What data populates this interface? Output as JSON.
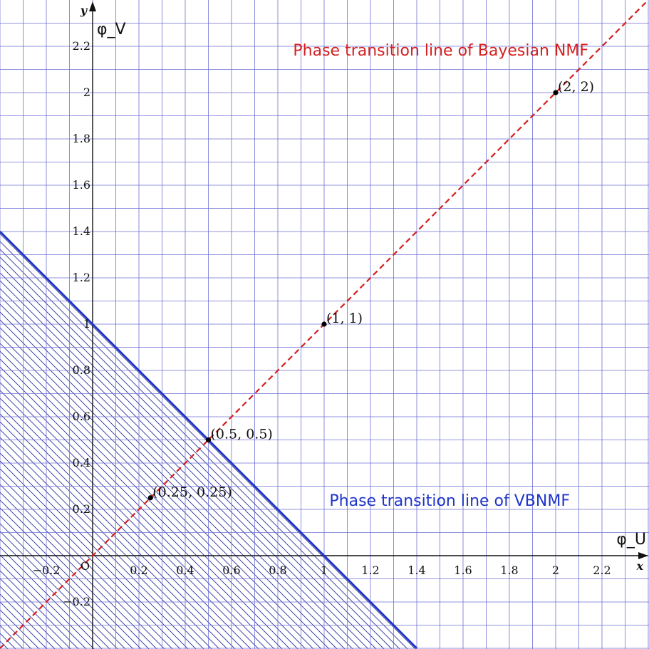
{
  "chart_data": {
    "type": "line",
    "xlabel": "φ_U",
    "ylabel": "φ_V",
    "x_axis_letter": "x",
    "y_axis_letter": "y",
    "xlim": [
      -0.4,
      2.4
    ],
    "ylim": [
      -0.4,
      2.4
    ],
    "x_ticks": [
      {
        "value": -0.2,
        "label": "−0.2"
      },
      {
        "value": 0.2,
        "label": "0.2"
      },
      {
        "value": 0.4,
        "label": "0.4"
      },
      {
        "value": 0.6,
        "label": "0.6"
      },
      {
        "value": 0.8,
        "label": "0.8"
      },
      {
        "value": 1,
        "label": "1"
      },
      {
        "value": 1.2,
        "label": "1.2"
      },
      {
        "value": 1.4,
        "label": "1.4"
      },
      {
        "value": 1.6,
        "label": "1.6"
      },
      {
        "value": 1.8,
        "label": "1.8"
      },
      {
        "value": 2,
        "label": "2"
      },
      {
        "value": 2.2,
        "label": "2.2"
      }
    ],
    "y_ticks": [
      {
        "value": -0.2,
        "label": "−0.2"
      },
      {
        "value": 0.2,
        "label": "0.2"
      },
      {
        "value": 0.4,
        "label": "0.4"
      },
      {
        "value": 0.6,
        "label": "0.6"
      },
      {
        "value": 0.8,
        "label": "0.8"
      },
      {
        "value": 1,
        "label": "1"
      },
      {
        "value": 1.2,
        "label": "1.2"
      },
      {
        "value": 1.4,
        "label": "1.4"
      },
      {
        "value": 1.6,
        "label": "1.6"
      },
      {
        "value": 1.8,
        "label": "1.8"
      },
      {
        "value": 2,
        "label": "2"
      },
      {
        "value": 2.2,
        "label": "2.2"
      }
    ],
    "origin_label": "O",
    "grid": true,
    "grid_minor_step": 0.1,
    "series": [
      {
        "name": "Phase transition line of Bayesian NMF",
        "equation": "y = x",
        "style": "dashed",
        "color": "#d42020",
        "x": [
          -0.4,
          2.4
        ],
        "y": [
          -0.4,
          2.4
        ]
      },
      {
        "name": "Phase transition line of VBNMF",
        "equation": "y = 1 - x",
        "style": "solid",
        "color": "#1f35c9",
        "x": [
          -0.4,
          1.4
        ],
        "y": [
          1.4,
          -0.4
        ],
        "hatched_region": "below"
      }
    ],
    "points": [
      {
        "x": 0.25,
        "y": 0.25,
        "label": "(0.25, 0.25)"
      },
      {
        "x": 0.5,
        "y": 0.5,
        "label": "(0.5, 0.5)"
      },
      {
        "x": 1,
        "y": 1,
        "label": "(1, 1)"
      },
      {
        "x": 2,
        "y": 2,
        "label": "(2, 2)"
      }
    ],
    "colors": {
      "grid": "#6f6fd6",
      "hatch": "#2a2f9e",
      "axis": "#111111"
    }
  }
}
